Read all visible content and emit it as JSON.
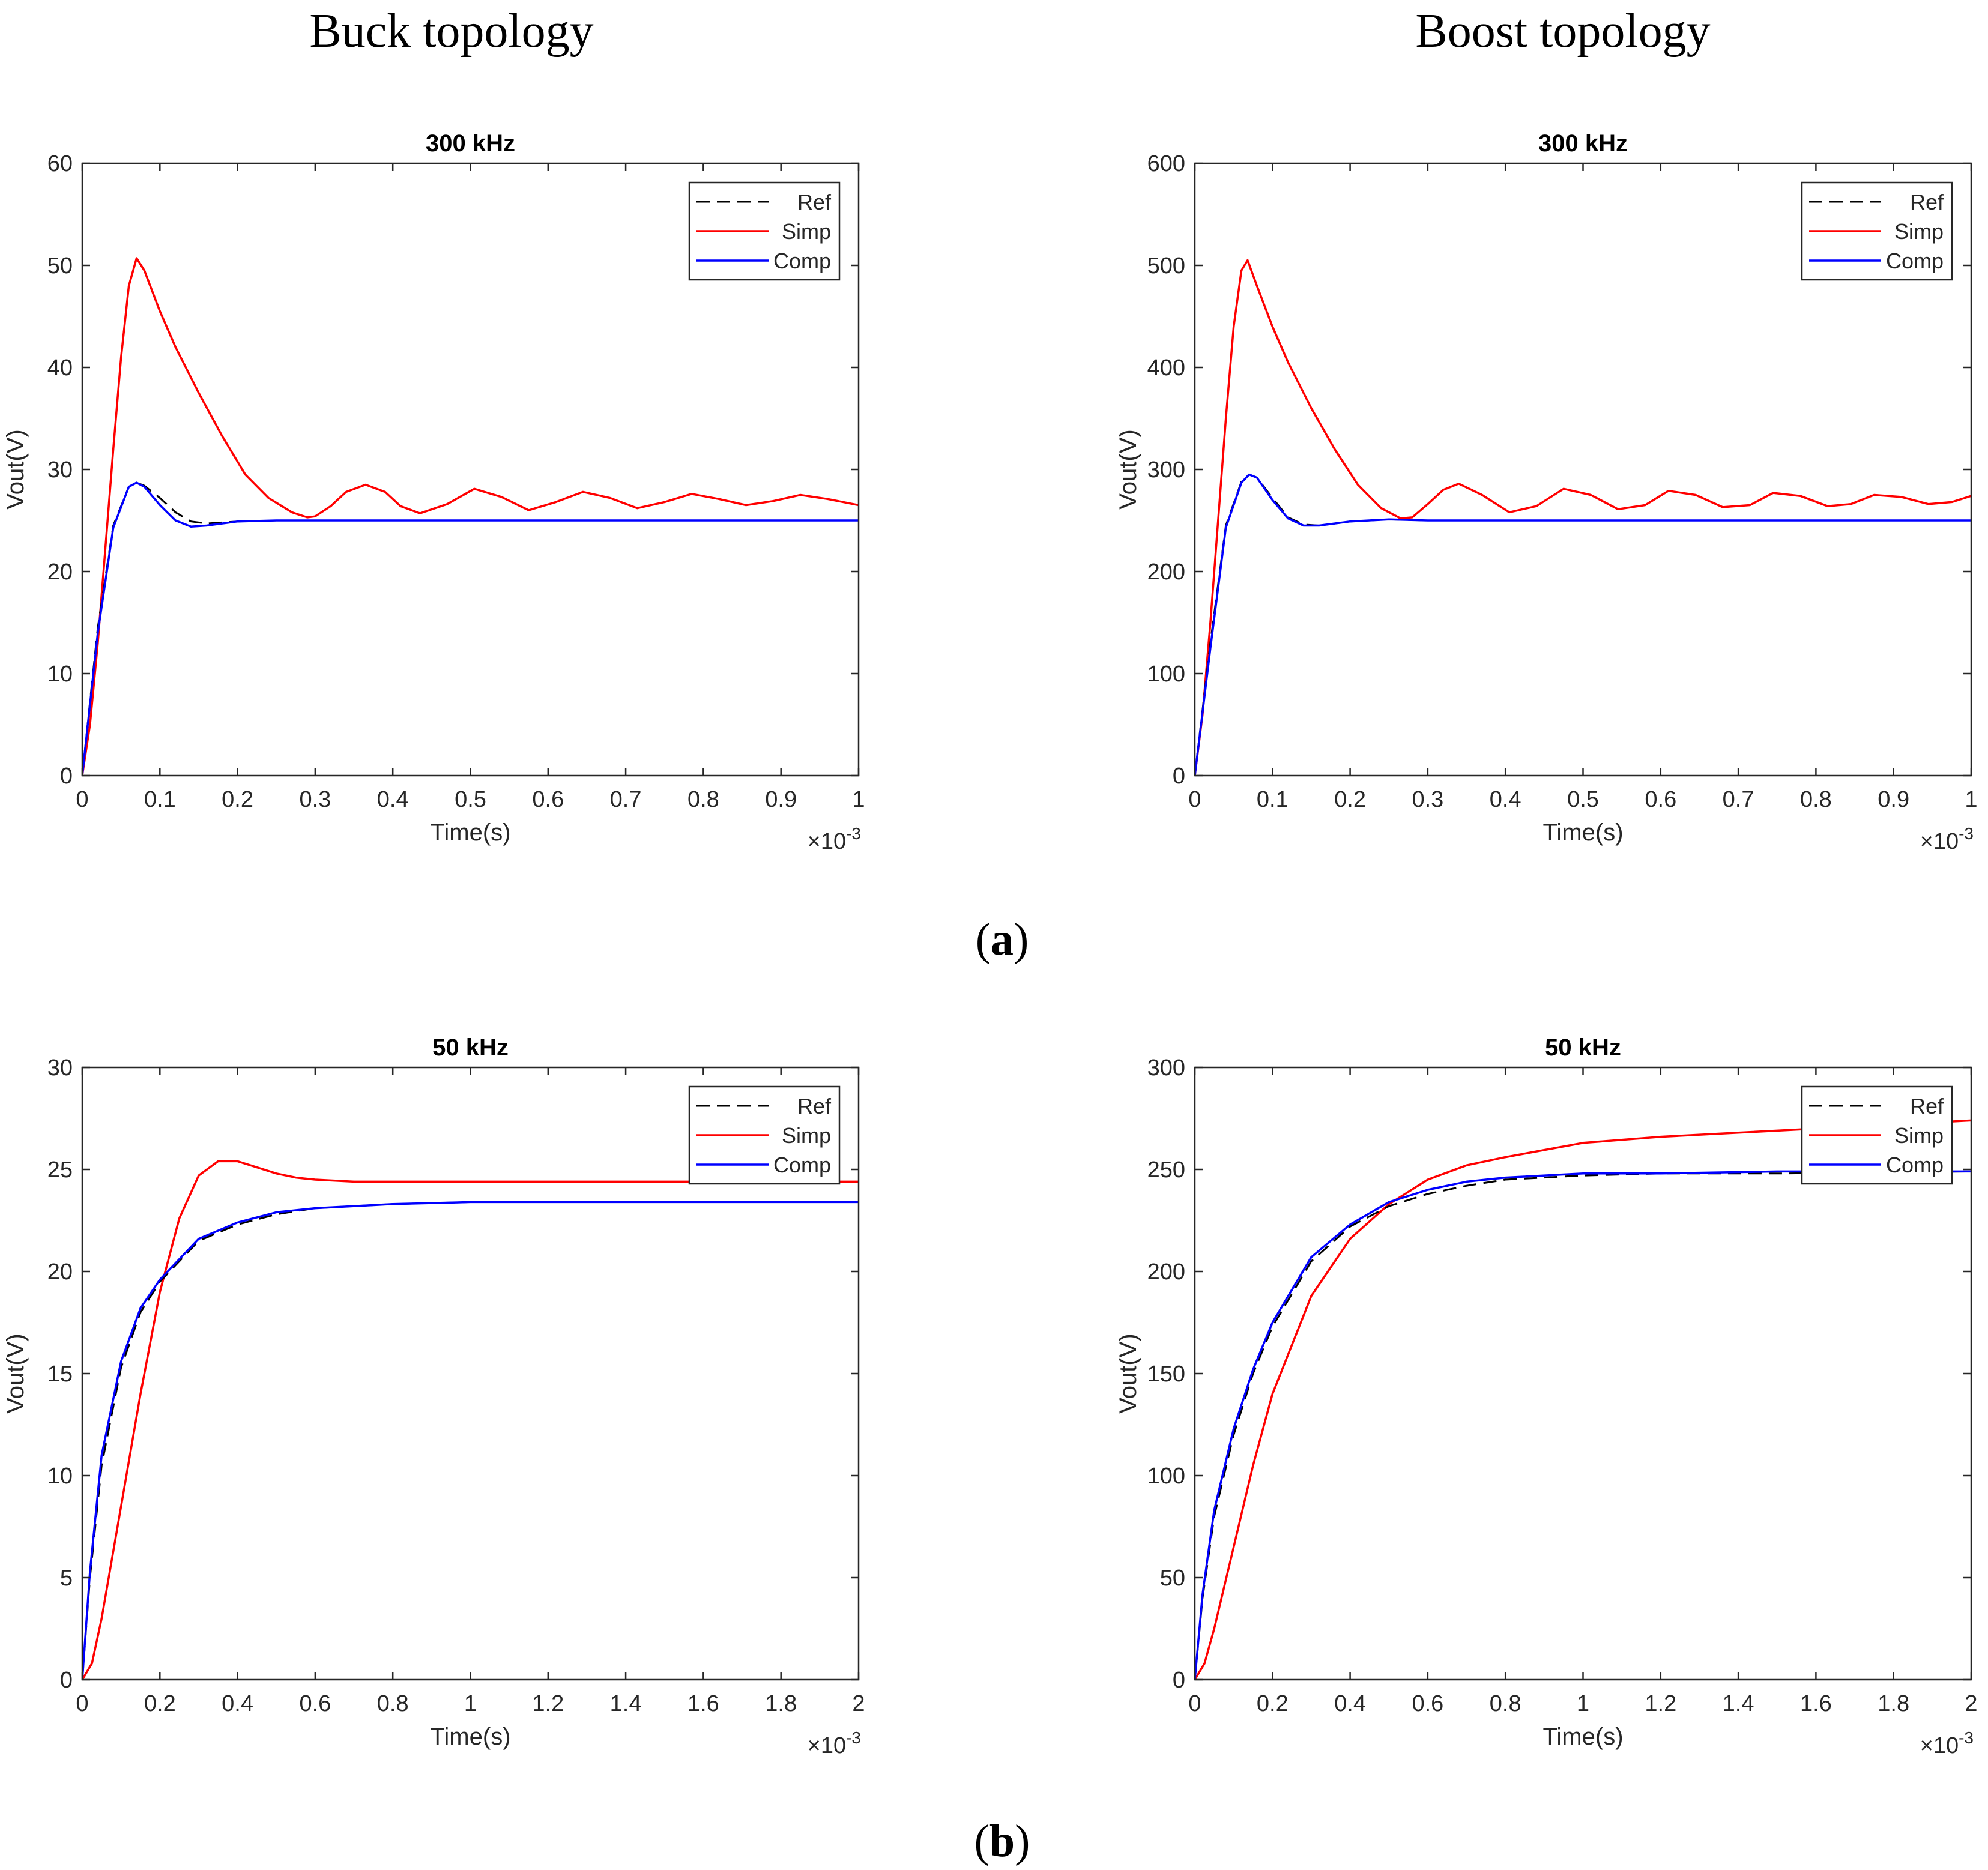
{
  "columns": {
    "left_title": "Buck topology",
    "right_title": "Boost topology"
  },
  "captions": {
    "a_open": "(",
    "a_letter": "a",
    "a_close": ")",
    "b_open": "(",
    "b_letter": "b",
    "b_close": ")"
  },
  "colors": {
    "ref": "#000000",
    "simp": "#ff0000",
    "comp": "#0000ff",
    "axis": "#262626"
  },
  "chart_data": [
    {
      "id": "buck-300",
      "type": "line",
      "title": "300 kHz",
      "xlabel": "Time(s)",
      "ylabel": "Vout(V)",
      "x_multiplier": "×10",
      "x_exponent": "-3",
      "xlim": [
        0,
        1
      ],
      "ylim": [
        0,
        60
      ],
      "xticks": [
        0,
        0.1,
        0.2,
        0.3,
        0.4,
        0.5,
        0.6,
        0.7,
        0.8,
        0.9,
        1
      ],
      "xtick_labels": [
        "0",
        "0.1",
        "0.2",
        "0.3",
        "0.4",
        "0.5",
        "0.6",
        "0.7",
        "0.8",
        "0.9",
        "1"
      ],
      "yticks": [
        0,
        10,
        20,
        30,
        40,
        50,
        60
      ],
      "ytick_labels": [
        "0",
        "10",
        "20",
        "30",
        "40",
        "50",
        "60"
      ],
      "legend": {
        "position": "top-right"
      },
      "series": [
        {
          "name": "Ref",
          "style": "dashed",
          "color": "#000000",
          "x": [
            0,
            0.02,
            0.04,
            0.06,
            0.07,
            0.08,
            0.1,
            0.12,
            0.14,
            0.16,
            0.2,
            0.25,
            0.3,
            0.4,
            0.5,
            0.6,
            0.7,
            0.8,
            0.9,
            1
          ],
          "y": [
            0,
            14.5,
            24.5,
            28.3,
            28.7,
            28.4,
            27.2,
            25.8,
            24.9,
            24.7,
            24.9,
            25,
            25,
            25,
            25,
            25,
            25,
            25,
            25,
            25
          ]
        },
        {
          "name": "Simp",
          "style": "solid",
          "color": "#ff0000",
          "x": [
            0,
            0.01,
            0.02,
            0.03,
            0.04,
            0.05,
            0.06,
            0.07,
            0.08,
            0.1,
            0.12,
            0.15,
            0.18,
            0.21,
            0.24,
            0.27,
            0.29,
            0.3,
            0.32,
            0.34,
            0.365,
            0.39,
            0.41,
            0.435,
            0.47,
            0.505,
            0.54,
            0.575,
            0.61,
            0.645,
            0.68,
            0.715,
            0.75,
            0.785,
            0.82,
            0.855,
            0.89,
            0.925,
            0.96,
            1
          ],
          "y": [
            0,
            5,
            13,
            22.5,
            32,
            41,
            48,
            50.7,
            49.5,
            45.5,
            42,
            37.5,
            33.3,
            29.5,
            27.2,
            25.8,
            25.3,
            25.4,
            26.4,
            27.8,
            28.5,
            27.8,
            26.4,
            25.7,
            26.6,
            28.1,
            27.3,
            26,
            26.8,
            27.8,
            27.2,
            26.2,
            26.8,
            27.6,
            27.1,
            26.5,
            26.9,
            27.5,
            27.1,
            26.5
          ]
        },
        {
          "name": "Comp",
          "style": "solid",
          "color": "#0000ff",
          "x": [
            0,
            0.02,
            0.04,
            0.06,
            0.07,
            0.08,
            0.1,
            0.12,
            0.14,
            0.16,
            0.2,
            0.25,
            0.3,
            0.4,
            0.5,
            0.6,
            0.7,
            0.8,
            0.9,
            1
          ],
          "y": [
            0,
            14,
            24.3,
            28.3,
            28.7,
            28.3,
            26.5,
            25,
            24.4,
            24.5,
            24.9,
            25,
            25,
            25,
            25,
            25,
            25,
            25,
            25,
            25
          ]
        }
      ]
    },
    {
      "id": "boost-300",
      "type": "line",
      "title": "300 kHz",
      "xlabel": "Time(s)",
      "ylabel": "Vout(V)",
      "x_multiplier": "×10",
      "x_exponent": "-3",
      "xlim": [
        0,
        1
      ],
      "ylim": [
        0,
        600
      ],
      "xticks": [
        0,
        0.1,
        0.2,
        0.3,
        0.4,
        0.5,
        0.6,
        0.7,
        0.8,
        0.9,
        1
      ],
      "xtick_labels": [
        "0",
        "0.1",
        "0.2",
        "0.3",
        "0.4",
        "0.5",
        "0.6",
        "0.7",
        "0.8",
        "0.9",
        "1"
      ],
      "yticks": [
        0,
        100,
        200,
        300,
        400,
        500,
        600
      ],
      "ytick_labels": [
        "0",
        "100",
        "200",
        "300",
        "400",
        "500",
        "600"
      ],
      "legend": {
        "position": "top-right"
      },
      "series": [
        {
          "name": "Ref",
          "style": "dashed",
          "color": "#000000",
          "x": [
            0,
            0.02,
            0.04,
            0.06,
            0.07,
            0.08,
            0.1,
            0.12,
            0.14,
            0.16,
            0.2,
            0.25,
            0.3,
            0.4,
            0.5,
            0.6,
            0.7,
            0.8,
            0.9,
            1
          ],
          "y": [
            0,
            130,
            245,
            288,
            295,
            292,
            272,
            253,
            246,
            245,
            249,
            251,
            250,
            250,
            250,
            250,
            250,
            250,
            250,
            250
          ]
        },
        {
          "name": "Simp",
          "style": "solid",
          "color": "#ff0000",
          "x": [
            0,
            0.01,
            0.02,
            0.03,
            0.04,
            0.05,
            0.06,
            0.068,
            0.08,
            0.1,
            0.12,
            0.15,
            0.18,
            0.21,
            0.24,
            0.265,
            0.28,
            0.3,
            0.32,
            0.34,
            0.37,
            0.405,
            0.44,
            0.475,
            0.51,
            0.545,
            0.58,
            0.61,
            0.645,
            0.68,
            0.715,
            0.745,
            0.78,
            0.815,
            0.845,
            0.875,
            0.91,
            0.945,
            0.975,
            1
          ],
          "y": [
            0,
            60,
            150,
            250,
            350,
            440,
            495,
            505,
            480,
            440,
            405,
            360,
            320,
            285,
            262,
            252,
            253,
            266,
            280,
            286,
            275,
            258,
            264,
            281,
            275,
            261,
            265,
            279,
            275,
            263,
            265,
            277,
            274,
            264,
            266,
            275,
            273,
            266,
            268,
            274
          ]
        },
        {
          "name": "Comp",
          "style": "solid",
          "color": "#0000ff",
          "x": [
            0,
            0.02,
            0.04,
            0.06,
            0.07,
            0.08,
            0.1,
            0.12,
            0.14,
            0.16,
            0.2,
            0.25,
            0.3,
            0.4,
            0.5,
            0.6,
            0.7,
            0.8,
            0.9,
            1
          ],
          "y": [
            0,
            125,
            243,
            287,
            295,
            292,
            270,
            252,
            245,
            245,
            249,
            251,
            250,
            250,
            250,
            250,
            250,
            250,
            250,
            250
          ]
        }
      ]
    },
    {
      "id": "buck-50",
      "type": "line",
      "title": "50 kHz",
      "xlabel": "Time(s)",
      "ylabel": "Vout(V)",
      "x_multiplier": "×10",
      "x_exponent": "-3",
      "xlim": [
        0,
        2
      ],
      "ylim": [
        0,
        30
      ],
      "xticks": [
        0,
        0.2,
        0.4,
        0.6,
        0.8,
        1,
        1.2,
        1.4,
        1.6,
        1.8,
        2
      ],
      "xtick_labels": [
        "0",
        "0.2",
        "0.4",
        "0.6",
        "0.8",
        "1",
        "1.2",
        "1.4",
        "1.6",
        "1.8",
        "2"
      ],
      "yticks": [
        0,
        5,
        10,
        15,
        20,
        25,
        30
      ],
      "ytick_labels": [
        "0",
        "5",
        "10",
        "15",
        "20",
        "25",
        "30"
      ],
      "legend": {
        "position": "top-right"
      },
      "series": [
        {
          "name": "Ref",
          "style": "dashed",
          "color": "#000000",
          "x": [
            0,
            0.02,
            0.05,
            0.1,
            0.15,
            0.2,
            0.3,
            0.4,
            0.5,
            0.6,
            0.8,
            1,
            1.2,
            1.6,
            2
          ],
          "y": [
            0,
            5,
            10.5,
            15.3,
            18,
            19.5,
            21.5,
            22.3,
            22.8,
            23.1,
            23.3,
            23.4,
            23.4,
            23.4,
            23.4
          ]
        },
        {
          "name": "Simp",
          "style": "solid",
          "color": "#ff0000",
          "x": [
            0,
            0.025,
            0.05,
            0.1,
            0.15,
            0.2,
            0.25,
            0.3,
            0.35,
            0.4,
            0.45,
            0.5,
            0.55,
            0.6,
            0.7,
            0.8,
            0.9,
            1,
            1.2,
            1.5,
            2
          ],
          "y": [
            0,
            0.8,
            3,
            8.5,
            14,
            19,
            22.6,
            24.7,
            25.4,
            25.4,
            25.1,
            24.8,
            24.6,
            24.5,
            24.4,
            24.4,
            24.4,
            24.4,
            24.4,
            24.4,
            24.4
          ]
        },
        {
          "name": "Comp",
          "style": "solid",
          "color": "#0000ff",
          "x": [
            0,
            0.02,
            0.05,
            0.1,
            0.15,
            0.2,
            0.3,
            0.4,
            0.5,
            0.6,
            0.8,
            1,
            1.2,
            1.6,
            2
          ],
          "y": [
            0,
            5.3,
            11,
            15.6,
            18.2,
            19.6,
            21.6,
            22.4,
            22.9,
            23.1,
            23.3,
            23.4,
            23.4,
            23.4,
            23.4
          ]
        }
      ]
    },
    {
      "id": "boost-50",
      "type": "line",
      "title": "50 kHz",
      "xlabel": "Time(s)",
      "ylabel": "Vout(V)",
      "x_multiplier": "×10",
      "x_exponent": "-3",
      "xlim": [
        0,
        2
      ],
      "ylim": [
        0,
        300
      ],
      "xticks": [
        0,
        0.2,
        0.4,
        0.6,
        0.8,
        1,
        1.2,
        1.4,
        1.6,
        1.8,
        2
      ],
      "xtick_labels": [
        "0",
        "0.2",
        "0.4",
        "0.6",
        "0.8",
        "1",
        "1.2",
        "1.4",
        "1.6",
        "1.8",
        "2"
      ],
      "yticks": [
        0,
        50,
        100,
        150,
        200,
        250,
        300
      ],
      "ytick_labels": [
        "0",
        "50",
        "100",
        "150",
        "200",
        "250",
        "300"
      ],
      "legend": {
        "position": "top-right"
      },
      "series": [
        {
          "name": "Ref",
          "style": "dashed",
          "color": "#000000",
          "x": [
            0,
            0.02,
            0.05,
            0.1,
            0.15,
            0.2,
            0.3,
            0.4,
            0.5,
            0.6,
            0.7,
            0.8,
            1,
            1.2,
            1.5,
            2
          ],
          "y": [
            0,
            40,
            80,
            120,
            150,
            173,
            205,
            222,
            232,
            238,
            242,
            245,
            247,
            248,
            248,
            249
          ]
        },
        {
          "name": "Simp",
          "style": "solid",
          "color": "#ff0000",
          "x": [
            0,
            0.025,
            0.05,
            0.1,
            0.15,
            0.2,
            0.3,
            0.4,
            0.5,
            0.6,
            0.7,
            0.8,
            1,
            1.2,
            1.4,
            1.6,
            1.8,
            2
          ],
          "y": [
            0,
            8,
            25,
            65,
            105,
            140,
            188,
            216,
            233,
            245,
            252,
            256,
            263,
            266,
            268,
            270,
            272,
            274
          ]
        },
        {
          "name": "Comp",
          "style": "solid",
          "color": "#0000ff",
          "x": [
            0,
            0.02,
            0.05,
            0.1,
            0.15,
            0.2,
            0.3,
            0.4,
            0.5,
            0.6,
            0.7,
            0.8,
            1,
            1.2,
            1.5,
            2
          ],
          "y": [
            0,
            42,
            83,
            123,
            152,
            175,
            207,
            223,
            234,
            240,
            244,
            246,
            248,
            248,
            249,
            249
          ]
        }
      ]
    }
  ]
}
